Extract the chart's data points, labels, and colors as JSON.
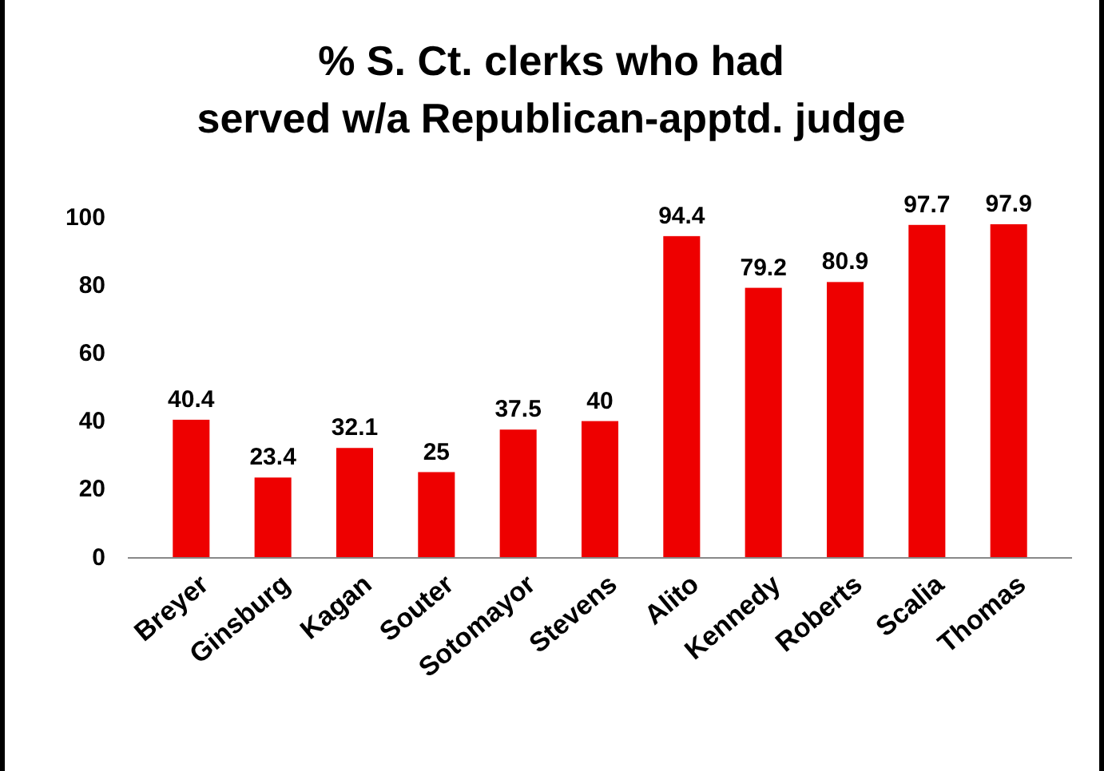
{
  "chart_data": {
    "type": "bar",
    "title": "% S. Ct. clerks who had served w/a Republican-apptd. judge",
    "categories": [
      "Breyer",
      "Ginsburg",
      "Kagan",
      "Souter",
      "Sotomayor",
      "Stevens",
      "Alito",
      "Kennedy",
      "Roberts",
      "Scalia",
      "Thomas"
    ],
    "values": [
      40.4,
      23.4,
      32.1,
      25,
      37.5,
      40,
      94.4,
      79.2,
      80.9,
      97.7,
      97.9
    ],
    "color": "#ee0000",
    "ylim": [
      0,
      100
    ],
    "yticks": [
      0,
      20,
      40,
      60,
      80,
      100
    ],
    "grid": false,
    "data_labels": true
  }
}
